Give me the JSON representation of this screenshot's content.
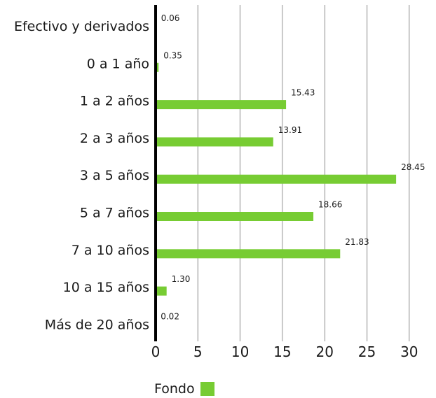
{
  "chart_data": {
    "type": "bar",
    "orientation": "horizontal",
    "categories": [
      "Efectivo y derivados",
      "0 a 1 año",
      "1 a 2 años",
      "2 a 3 años",
      "3 a 5 años",
      "5 a 7 años",
      "7 a 10 años",
      "10 a 15 años",
      "Más de 20 años"
    ],
    "series": [
      {
        "name": "Fondo",
        "values": [
          0.06,
          0.35,
          15.43,
          13.91,
          28.45,
          18.66,
          21.83,
          1.3,
          0.02
        ],
        "labels": [
          "0.06",
          "0.35",
          "15.43",
          "13.91",
          "28.45",
          "18.66",
          "21.83",
          "1.30",
          "0.02"
        ]
      }
    ],
    "xlim": [
      0,
      30
    ],
    "xticks": [
      0,
      5,
      10,
      15,
      20,
      25,
      30
    ],
    "grid": true,
    "legend_position": "bottom-left",
    "colors": {
      "bar": "#77cc33",
      "grid": "#c8c8c8",
      "axis": "#000000",
      "text": "#1a1a1a"
    }
  }
}
